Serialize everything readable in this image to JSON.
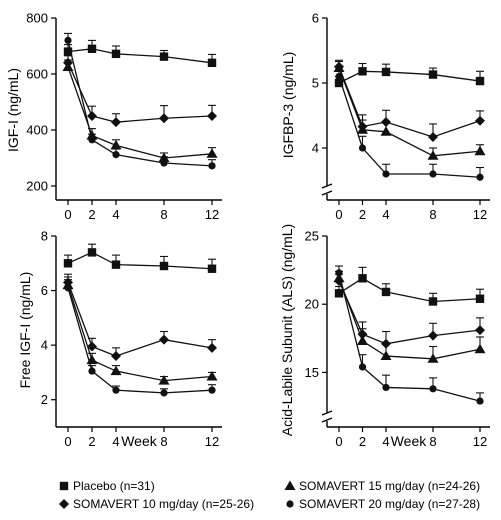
{
  "legend": [
    {
      "marker": "square",
      "label": "Placebo (n=31)"
    },
    {
      "marker": "triangle",
      "label": "SOMAVERT 15 mg/day (n=24-26)"
    },
    {
      "marker": "diamond",
      "label": "SOMAVERT 10 mg/day (n=25-26)"
    },
    {
      "marker": "circle",
      "label": "SOMAVERT 20 mg/day (n=27-28)"
    }
  ],
  "chart_data": [
    {
      "type": "line",
      "ylabel": "IGF-I (ng/mL)",
      "xlabel": "",
      "x": [
        0,
        2,
        4,
        8,
        12
      ],
      "xticks": [
        "0",
        "2",
        "4",
        "8",
        "12"
      ],
      "ylim": [
        150,
        800
      ],
      "yticks": [
        200,
        400,
        600,
        800
      ],
      "axis_break": false,
      "series": [
        {
          "marker": "square",
          "values": [
            680,
            690,
            672,
            662,
            640
          ],
          "err": [
            25,
            30,
            28,
            22,
            30
          ]
        },
        {
          "marker": "diamond",
          "values": [
            640,
            450,
            428,
            442,
            450
          ],
          "err": [
            25,
            35,
            30,
            45,
            38
          ]
        },
        {
          "marker": "triangle",
          "values": [
            625,
            380,
            345,
            300,
            315
          ],
          "err": [
            25,
            25,
            20,
            18,
            22
          ]
        },
        {
          "marker": "circle",
          "values": [
            720,
            365,
            312,
            282,
            272
          ],
          "err": [
            25,
            20,
            20,
            22,
            22
          ]
        }
      ]
    },
    {
      "type": "line",
      "ylabel": "IGFBP-3 (ng/mL)",
      "xlabel": "",
      "x": [
        0,
        2,
        4,
        8,
        12
      ],
      "xticks": [
        "0",
        "2",
        "4",
        "8",
        "12"
      ],
      "ylim": [
        3.2,
        6
      ],
      "yticks": [
        4,
        5,
        6
      ],
      "axis_break": true,
      "series": [
        {
          "marker": "square",
          "values": [
            5.0,
            5.18,
            5.17,
            5.13,
            5.03
          ],
          "err": [
            0.1,
            0.12,
            0.12,
            0.1,
            0.15
          ]
        },
        {
          "marker": "diamond",
          "values": [
            5.25,
            4.33,
            4.4,
            4.17,
            4.42
          ],
          "err": [
            0.1,
            0.18,
            0.18,
            0.2,
            0.15
          ]
        },
        {
          "marker": "triangle",
          "values": [
            5.23,
            4.28,
            4.25,
            3.88,
            3.95
          ],
          "err": [
            0.1,
            0.15,
            0.15,
            0.12,
            0.1
          ]
        },
        {
          "marker": "circle",
          "values": [
            5.1,
            4.0,
            3.6,
            3.6,
            3.55
          ],
          "err": [
            0.1,
            0.18,
            0.15,
            0.15,
            0.15
          ]
        }
      ]
    },
    {
      "type": "line",
      "ylabel": "Free IGF-I (ng/mL)",
      "xlabel": "Week",
      "x": [
        0,
        2,
        4,
        8,
        12
      ],
      "xticks": [
        "0",
        "2",
        "4",
        "8",
        "12"
      ],
      "ylim": [
        1,
        8
      ],
      "yticks": [
        2,
        4,
        6,
        8
      ],
      "axis_break": false,
      "series": [
        {
          "marker": "square",
          "values": [
            7.0,
            7.4,
            6.95,
            6.9,
            6.8
          ],
          "err": [
            0.3,
            0.3,
            0.35,
            0.35,
            0.35
          ]
        },
        {
          "marker": "diamond",
          "values": [
            6.3,
            3.95,
            3.6,
            4.2,
            3.9
          ],
          "err": [
            0.3,
            0.3,
            0.3,
            0.3,
            0.3
          ]
        },
        {
          "marker": "triangle",
          "values": [
            6.2,
            3.45,
            3.05,
            2.7,
            2.85
          ],
          "err": [
            0.3,
            0.25,
            0.2,
            0.15,
            0.15
          ]
        },
        {
          "marker": "circle",
          "values": [
            6.1,
            3.05,
            2.35,
            2.25,
            2.35
          ],
          "err": [
            0.3,
            0.2,
            0.15,
            0.15,
            0.2
          ]
        }
      ]
    },
    {
      "type": "line",
      "ylabel": "Acid-Labile Subunit (ALS) (ng/mL)",
      "xlabel": "Week",
      "x": [
        0,
        2,
        4,
        8,
        12
      ],
      "xticks": [
        "0",
        "2",
        "4",
        "8",
        "12"
      ],
      "ylim": [
        11,
        25
      ],
      "yticks": [
        15,
        20,
        25
      ],
      "axis_break": true,
      "series": [
        {
          "marker": "square",
          "values": [
            20.8,
            21.9,
            20.9,
            20.2,
            20.4
          ],
          "err": [
            0.5,
            0.8,
            0.6,
            0.6,
            0.7
          ]
        },
        {
          "marker": "diamond",
          "values": [
            21.7,
            17.8,
            17.1,
            17.7,
            18.1
          ],
          "err": [
            0.5,
            0.9,
            0.9,
            0.9,
            0.9
          ]
        },
        {
          "marker": "triangle",
          "values": [
            21.9,
            17.3,
            16.2,
            16.0,
            16.7
          ],
          "err": [
            0.5,
            0.9,
            0.9,
            0.9,
            0.9
          ]
        },
        {
          "marker": "circle",
          "values": [
            22.3,
            15.4,
            13.9,
            13.8,
            12.9
          ],
          "err": [
            0.5,
            0.9,
            0.9,
            0.8,
            0.6
          ]
        }
      ]
    }
  ]
}
